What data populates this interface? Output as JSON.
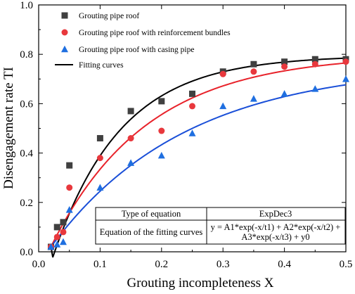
{
  "chart_data": {
    "type": "scatter",
    "xlabel": "Grouting incompleteness X",
    "ylabel": "Disengagement rate TI",
    "xlim": [
      0.0,
      0.5
    ],
    "ylim": [
      0.0,
      1.0
    ],
    "xticks": [
      0.0,
      0.1,
      0.2,
      0.3,
      0.4,
      0.5
    ],
    "yticks": [
      0.0,
      0.2,
      0.4,
      0.6,
      0.8,
      1.0
    ],
    "xtick_labels": [
      "0.0",
      "0.1",
      "0.2",
      "0.3",
      "0.4",
      "0.5"
    ],
    "ytick_labels": [
      "0.0",
      "0.2",
      "0.4",
      "0.6",
      "0.8",
      "1.0"
    ],
    "grid": false,
    "legend_position": "top-left",
    "series": [
      {
        "name": "Grouting pipe roof",
        "marker": "square",
        "color": "#404040",
        "x": [
          0.02,
          0.03,
          0.04,
          0.05,
          0.1,
          0.15,
          0.2,
          0.25,
          0.3,
          0.35,
          0.4,
          0.45,
          0.5
        ],
        "y": [
          0.02,
          0.1,
          0.12,
          0.35,
          0.46,
          0.57,
          0.61,
          0.64,
          0.73,
          0.76,
          0.77,
          0.78,
          0.78
        ]
      },
      {
        "name": "Grouting pipe roof with reinforcement bundles",
        "marker": "circle",
        "color": "#e8383d",
        "x": [
          0.02,
          0.03,
          0.04,
          0.05,
          0.1,
          0.15,
          0.2,
          0.25,
          0.3,
          0.35,
          0.4,
          0.45,
          0.5
        ],
        "y": [
          0.02,
          0.06,
          0.08,
          0.26,
          0.38,
          0.46,
          0.49,
          0.59,
          0.72,
          0.73,
          0.75,
          0.76,
          0.77
        ]
      },
      {
        "name": "Grouting pipe roof with casing pipe",
        "marker": "triangle",
        "color": "#1f6fe0",
        "x": [
          0.02,
          0.03,
          0.04,
          0.05,
          0.1,
          0.15,
          0.2,
          0.25,
          0.3,
          0.35,
          0.4,
          0.45,
          0.5
        ],
        "y": [
          0.02,
          0.03,
          0.04,
          0.17,
          0.26,
          0.36,
          0.39,
          0.48,
          0.59,
          0.62,
          0.64,
          0.66,
          0.7
        ]
      }
    ],
    "fitting_curves": {
      "name": "Fitting curves",
      "color": "#000000",
      "curves": [
        {
          "color": "#000000",
          "y0": 0.795,
          "A1": -0.84,
          "t1": 0.11,
          "x0": 0.02,
          "y_start": 0.02
        },
        {
          "color": "#e8222a",
          "y0": 0.8,
          "A1": -0.78,
          "t1": 0.155,
          "x0": 0.02,
          "y_start": 0.02
        },
        {
          "color": "#1a4fd8",
          "y0": 0.76,
          "A1": -0.74,
          "t1": 0.22,
          "x0": 0.02,
          "y_start": 0.02
        }
      ]
    },
    "equation_table": {
      "header_label": "Type of equation",
      "header_value": "ExpDec3",
      "row_label": "Equation of the fitting curves",
      "row_value_line1": "y = A1*exp(-x/t1) + A2*exp(-x/t2) +",
      "row_value_line2": "A3*exp(-x/t3) + y0"
    }
  }
}
